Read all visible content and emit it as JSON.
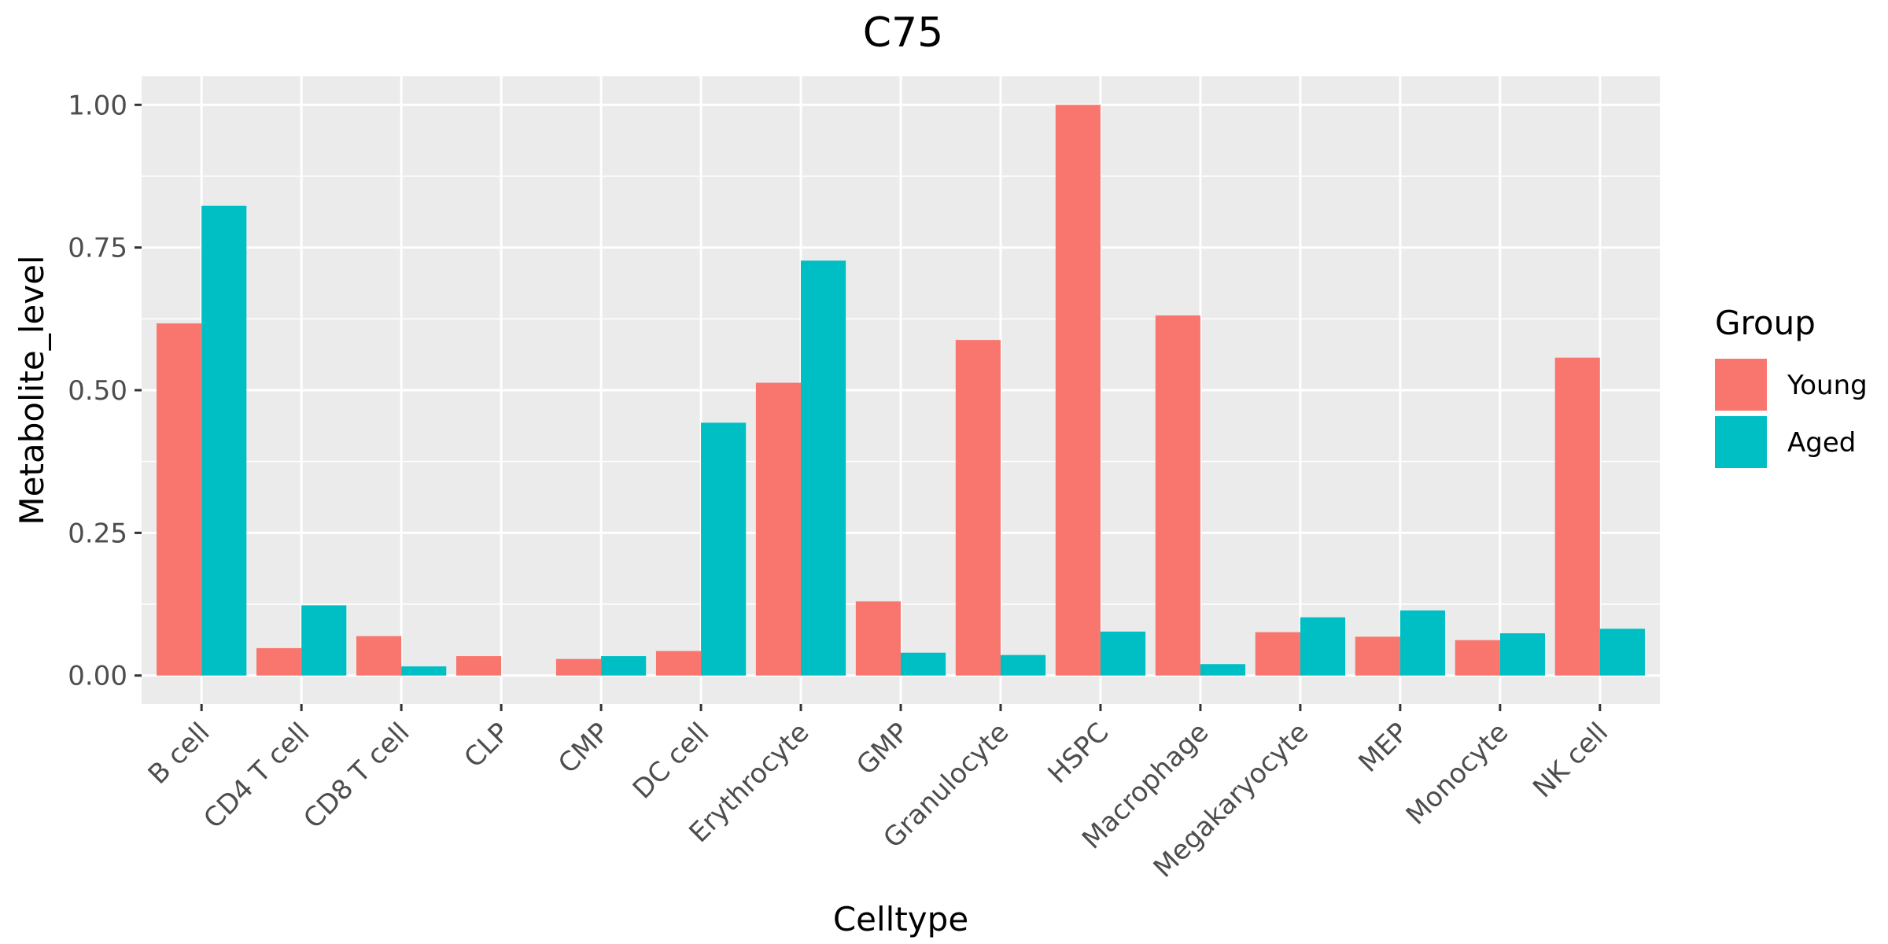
{
  "chart_data": {
    "type": "bar",
    "title": "C75",
    "xlabel": "Celltype",
    "ylabel": "Metabolite_level",
    "categories": [
      "B cell",
      "CD4 T cell",
      "CD8 T cell",
      "CLP",
      "CMP",
      "DC cell",
      "Erythrocyte",
      "GMP",
      "Granulocyte",
      "HSPC",
      "Macrophage",
      "Megakaryocyte",
      "MEP",
      "Monocyte",
      "NK cell"
    ],
    "series": [
      {
        "name": "Young",
        "color": "#F8766D",
        "values": [
          0.617,
          0.048,
          0.069,
          0.034,
          0.029,
          0.043,
          0.513,
          0.13,
          0.588,
          1.0,
          0.631,
          0.076,
          0.068,
          0.062,
          0.557
        ]
      },
      {
        "name": "Aged",
        "color": "#00BFC4",
        "values": [
          0.823,
          0.123,
          0.016,
          0.0,
          0.034,
          0.443,
          0.727,
          0.04,
          0.036,
          0.077,
          0.02,
          0.102,
          0.114,
          0.074,
          0.082
        ]
      }
    ],
    "ylim": [
      -0.05,
      1.05
    ],
    "yticks": [
      0,
      0.25,
      0.5,
      0.75,
      1.0
    ],
    "ytick_labels": [
      "0.00",
      "0.25",
      "0.50",
      "0.75",
      "1.00"
    ],
    "grid": true,
    "legend": {
      "title": "Group",
      "position": "right"
    },
    "panel_color": "#EBEBEB"
  }
}
